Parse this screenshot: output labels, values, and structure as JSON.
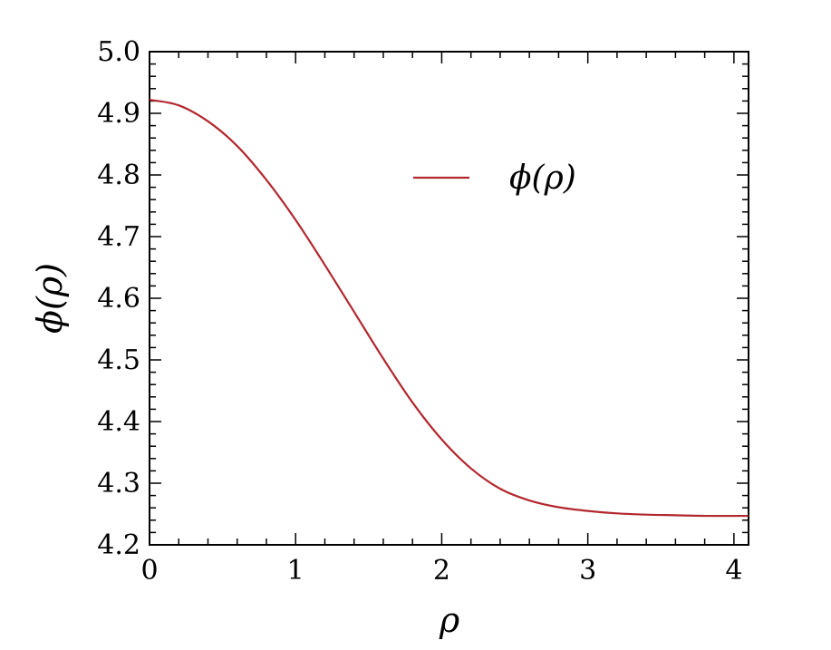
{
  "chart_data": {
    "type": "line",
    "title": "",
    "xlabel": "ρ",
    "ylabel": "ϕ(ρ)",
    "xlim": [
      0,
      4.1
    ],
    "ylim": [
      4.2,
      5.0
    ],
    "xticks": [
      0,
      1,
      2,
      3,
      4
    ],
    "xtick_labels": [
      "0",
      "1",
      "2",
      "3",
      "4"
    ],
    "yticks": [
      4.2,
      4.3,
      4.4,
      4.5,
      4.6,
      4.7,
      4.8,
      4.9,
      5.0
    ],
    "ytick_labels": [
      "4.2",
      "4.3",
      "4.4",
      "4.5",
      "4.6",
      "4.7",
      "4.8",
      "4.9",
      "5.0"
    ],
    "grid": false,
    "legend_position": "upper-center",
    "series": [
      {
        "name": "ϕ(ρ)",
        "color": "#b2282e",
        "x": [
          0,
          0.2,
          0.4,
          0.6,
          0.8,
          1.0,
          1.2,
          1.4,
          1.6,
          1.8,
          2.0,
          2.2,
          2.4,
          2.6,
          2.8,
          3.0,
          3.2,
          3.4,
          3.6,
          3.8,
          4.0,
          4.1
        ],
        "y": [
          4.922,
          4.913,
          4.887,
          4.847,
          4.792,
          4.727,
          4.654,
          4.578,
          4.502,
          4.431,
          4.371,
          4.324,
          4.291,
          4.272,
          4.261,
          4.255,
          4.251,
          4.249,
          4.248,
          4.247,
          4.247,
          4.247
        ]
      }
    ]
  }
}
